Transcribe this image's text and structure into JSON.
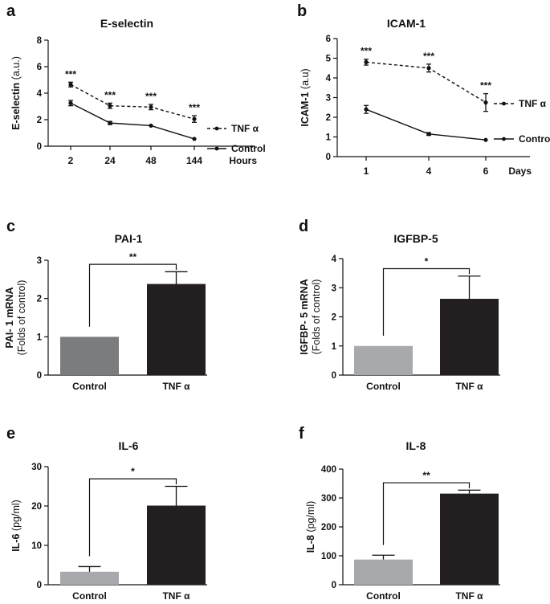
{
  "chart_data": [
    {
      "id": "a",
      "panel_label": "a",
      "type": "line",
      "title": "E-selectin",
      "ylabel_bold": "E-selectin",
      "ylabel_normal": " (a.u.)",
      "xlabel": "Hours",
      "categories": [
        "2",
        "24",
        "48",
        "144"
      ],
      "ylim": [
        0,
        8
      ],
      "yticks": [
        0,
        2,
        4,
        6,
        8
      ],
      "series": [
        {
          "name": "TNF α",
          "values": [
            4.65,
            3.05,
            2.95,
            2.05
          ],
          "errors": [
            0.18,
            0.2,
            0.2,
            0.25
          ],
          "style": "dashed",
          "significance": [
            "***",
            "***",
            "***",
            "***"
          ]
        },
        {
          "name": "Control",
          "values": [
            3.25,
            1.75,
            1.55,
            0.55
          ],
          "errors": [
            0.2,
            0.12,
            0.0,
            0.0
          ],
          "style": "solid",
          "significance": [
            "",
            "",
            "",
            ""
          ]
        }
      ]
    },
    {
      "id": "b",
      "panel_label": "b",
      "type": "line",
      "title": "ICAM-1",
      "ylabel_bold": "ICAM-1",
      "ylabel_normal": " (a.u)",
      "xlabel": "Days",
      "categories": [
        "1",
        "4",
        "6"
      ],
      "ylim": [
        0,
        6
      ],
      "yticks": [
        0,
        1,
        2,
        3,
        4,
        5,
        6
      ],
      "series": [
        {
          "name": "TNF α",
          "values": [
            4.8,
            4.5,
            2.75
          ],
          "errors": [
            0.15,
            0.2,
            0.45
          ],
          "style": "dashed",
          "significance": [
            "***",
            "***",
            "***"
          ]
        },
        {
          "name": "Control",
          "values": [
            2.4,
            1.15,
            0.85
          ],
          "errors": [
            0.2,
            0.07,
            0.0
          ],
          "style": "solid",
          "significance": [
            "",
            "",
            ""
          ]
        }
      ]
    },
    {
      "id": "c",
      "panel_label": "c",
      "type": "bar",
      "title": "PAI-1",
      "ylabel_bold": "PAI- 1 mRNA",
      "ylabel_normal": "(Folds of control)",
      "categories": [
        "Control",
        "TNF α"
      ],
      "values": [
        1.0,
        2.38
      ],
      "errors": [
        0.0,
        0.32
      ],
      "colors": [
        "#7b7c7e",
        "#231f20"
      ],
      "ylim": [
        0,
        3
      ],
      "yticks": [
        0,
        1,
        2,
        3
      ],
      "significance": "**"
    },
    {
      "id": "d",
      "panel_label": "d",
      "type": "bar",
      "title": "IGFBP-5",
      "ylabel_bold": "IGFBP- 5 mRNA",
      "ylabel_normal": "(Folds of control)",
      "categories": [
        "Control",
        "TNF α"
      ],
      "values": [
        1.0,
        2.62
      ],
      "errors": [
        0.0,
        0.78
      ],
      "colors": [
        "#a7a9ac",
        "#231f20"
      ],
      "ylim": [
        0,
        4
      ],
      "yticks": [
        0,
        1,
        2,
        3,
        4
      ],
      "significance": "*"
    },
    {
      "id": "e",
      "panel_label": "e",
      "type": "bar",
      "title": "IL-6",
      "ylabel_bold": "IL-6",
      "ylabel_normal": " (pg/ml)",
      "categories": [
        "Control",
        "TNF α"
      ],
      "values": [
        3.3,
        20.1
      ],
      "errors": [
        1.3,
        4.9
      ],
      "colors": [
        "#a7a9ac",
        "#231f20"
      ],
      "ylim": [
        0,
        30
      ],
      "yticks": [
        0,
        10,
        20,
        30
      ],
      "significance": "*"
    },
    {
      "id": "f",
      "panel_label": "f",
      "type": "bar",
      "title": "IL-8",
      "ylabel_bold": "IL-8",
      "ylabel_normal": " (pg/ml)",
      "categories": [
        "Control",
        "TNF α"
      ],
      "values": [
        87,
        315
      ],
      "errors": [
        15,
        12
      ],
      "colors": [
        "#a7a9ac",
        "#231f20"
      ],
      "ylim": [
        0,
        400
      ],
      "yticks": [
        0,
        100,
        200,
        300,
        400
      ],
      "significance": "**"
    }
  ]
}
